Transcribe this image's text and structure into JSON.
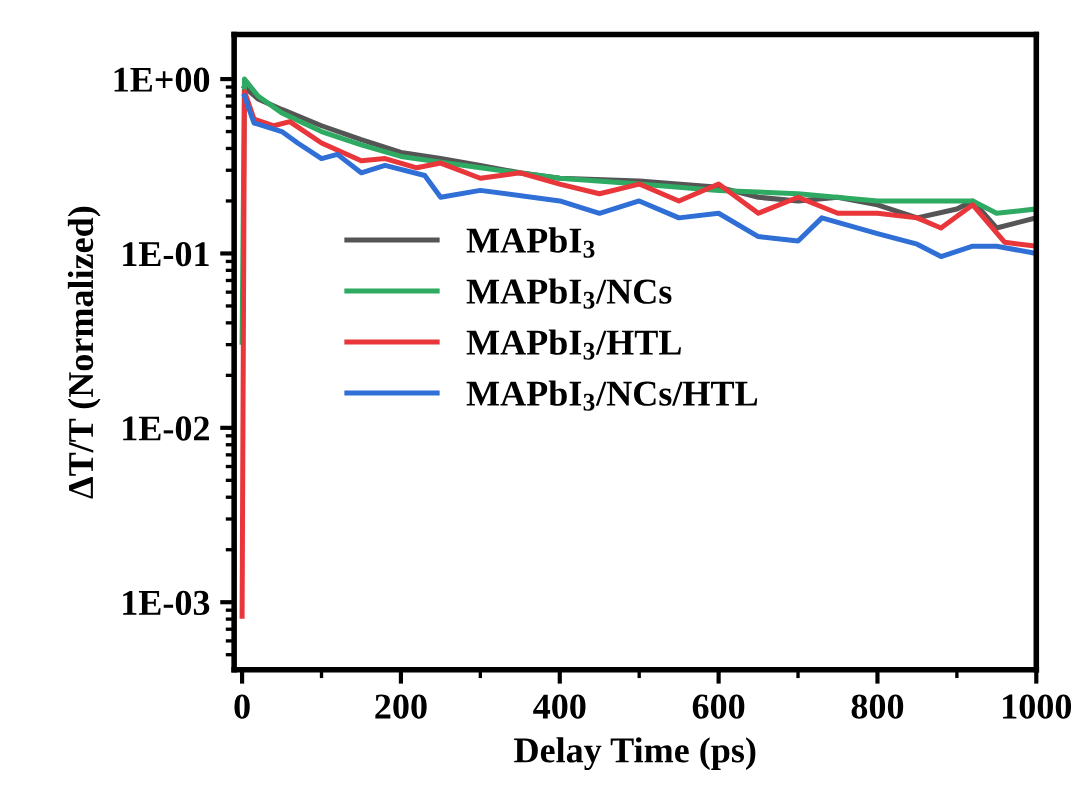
{
  "chart_data": {
    "type": "line",
    "xlabel": "Delay Time (ps)",
    "ylabel": "ΔT/T (Normalized)",
    "log": "y",
    "legend": "left",
    "grid": false,
    "xlim": [
      -10,
      1000
    ],
    "xticks": [
      0,
      200,
      400,
      600,
      800,
      1000
    ],
    "ylim": [
      0.00041,
      1.8
    ],
    "yticks": [
      {
        "value": 0.001,
        "label": "1E-03"
      },
      {
        "value": 0.01,
        "label": "1E-02"
      },
      {
        "value": 0.1,
        "label": "1E-01"
      },
      {
        "value": 1,
        "label": "1E+00"
      }
    ],
    "series": [
      {
        "name": "MAPbI$_{3}$",
        "color": "#555555",
        "x": [
          3,
          20,
          50,
          100,
          150,
          200,
          250,
          300,
          350,
          400,
          500,
          600,
          650,
          700,
          750,
          800,
          850,
          900,
          920,
          950,
          1000
        ],
        "values": [
          0.9,
          0.77,
          0.67,
          0.54,
          0.45,
          0.38,
          0.35,
          0.32,
          0.29,
          0.27,
          0.26,
          0.24,
          0.21,
          0.2,
          0.21,
          0.19,
          0.16,
          0.18,
          0.2,
          0.14,
          0.16
        ]
      },
      {
        "name": "MAPbI$_{3}$/NCs",
        "color": "#2eaa62",
        "x": [
          0,
          3,
          20,
          50,
          100,
          150,
          200,
          300,
          400,
          500,
          600,
          700,
          800,
          900,
          920,
          950,
          1000
        ],
        "values": [
          0.031,
          1.0,
          0.8,
          0.64,
          0.5,
          0.42,
          0.36,
          0.31,
          0.27,
          0.25,
          0.23,
          0.22,
          0.2,
          0.2,
          0.2,
          0.17,
          0.18
        ]
      },
      {
        "name": "MAPbI$_{3}$/HTL",
        "color": "#e8363b",
        "x": [
          0,
          3,
          15,
          40,
          60,
          100,
          150,
          180,
          220,
          250,
          300,
          350,
          400,
          450,
          500,
          550,
          600,
          650,
          700,
          750,
          800,
          850,
          880,
          920,
          960,
          1000
        ],
        "values": [
          0.00083,
          0.85,
          0.59,
          0.54,
          0.57,
          0.43,
          0.34,
          0.35,
          0.31,
          0.33,
          0.27,
          0.29,
          0.25,
          0.22,
          0.25,
          0.2,
          0.25,
          0.17,
          0.21,
          0.17,
          0.17,
          0.16,
          0.14,
          0.19,
          0.116,
          0.11
        ]
      },
      {
        "name": "MAPbI$_{3}$/NCs/HTL",
        "color": "#2f6fd6",
        "x": [
          3,
          15,
          50,
          70,
          100,
          120,
          150,
          180,
          230,
          250,
          300,
          400,
          450,
          500,
          550,
          600,
          650,
          700,
          730,
          800,
          850,
          880,
          920,
          950,
          1000
        ],
        "values": [
          0.8,
          0.56,
          0.5,
          0.43,
          0.35,
          0.37,
          0.29,
          0.32,
          0.28,
          0.21,
          0.23,
          0.2,
          0.17,
          0.2,
          0.16,
          0.17,
          0.125,
          0.118,
          0.16,
          0.13,
          0.113,
          0.096,
          0.11,
          0.11,
          0.1
        ]
      }
    ]
  }
}
